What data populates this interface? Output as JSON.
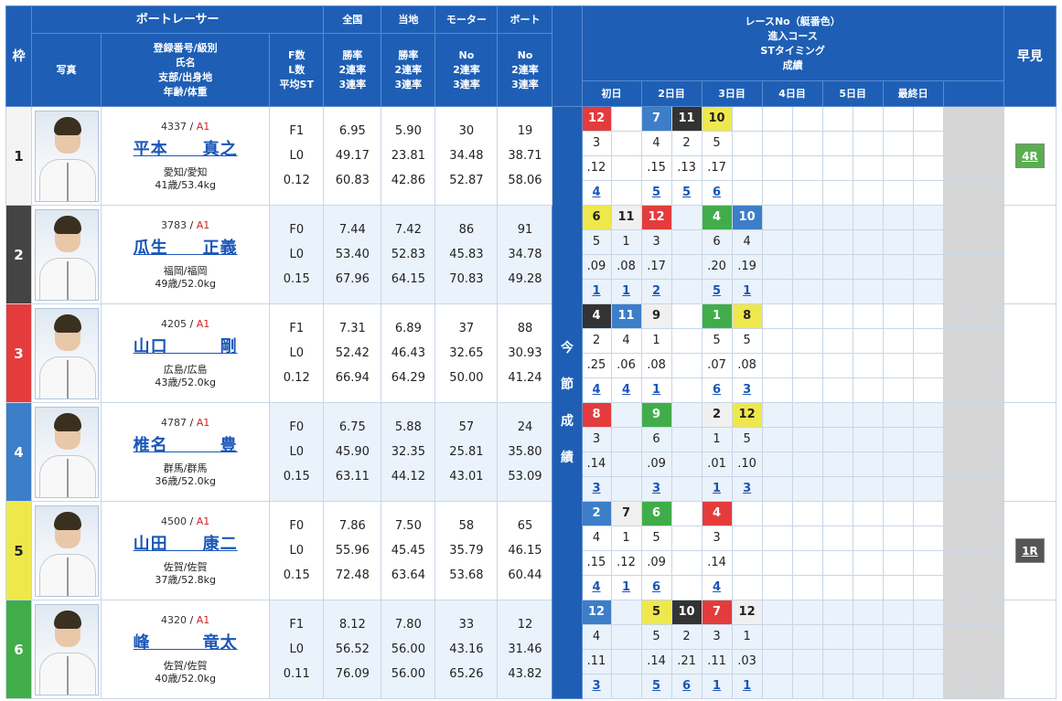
{
  "header": {
    "boat_racer": "ボートレーサー",
    "waku": "枠",
    "photo": "写真",
    "info_sub": [
      "登録番号/級別",
      "氏名",
      "支部/出身地",
      "年齢/体重"
    ],
    "f_sub": [
      "F数",
      "L数",
      "平均ST"
    ],
    "zenkoku": "全国",
    "zenkoku_sub": [
      "勝率",
      "2連率",
      "3連率"
    ],
    "touchi": "当地",
    "touchi_sub": [
      "勝率",
      "2連率",
      "3連率"
    ],
    "motor": "モーター",
    "motor_sub": [
      "No",
      "2連率",
      "3連率"
    ],
    "boat": "ボート",
    "boat_sub": [
      "No",
      "2連率",
      "3連率"
    ],
    "race_info": [
      "レースNo（艇番色）",
      "進入コース",
      "STタイミング",
      "成績"
    ],
    "days": [
      "初日",
      "2日目",
      "3日目",
      "4日目",
      "5日目",
      "最終日"
    ],
    "hayami": "早見",
    "konsetsu": [
      "今",
      "節",
      "成",
      "績"
    ]
  },
  "racers": [
    {
      "lane": "1",
      "reg": "4337",
      "cls": "A1",
      "name": "平本　　真之",
      "branch": "愛知/愛知",
      "age": "41歳/53.4kg",
      "f": "F1",
      "l": "L0",
      "st": "0.12",
      "zen": [
        "6.95",
        "49.17",
        "60.83"
      ],
      "toc": [
        "5.90",
        "23.81",
        "42.86"
      ],
      "mot": [
        "30",
        "34.48",
        "52.87"
      ],
      "boa": [
        "19",
        "38.71",
        "58.06"
      ],
      "hayami": "4R",
      "hcolor": "g",
      "rows": [
        [
          {
            "t": "12",
            "c": "3"
          },
          {
            "t": "",
            "c": ""
          },
          {
            "t": "7",
            "c": "4"
          },
          {
            "t": "11",
            "c": "2"
          },
          {
            "t": "10",
            "c": "5"
          },
          {
            "t": "",
            "c": ""
          }
        ],
        [
          "3",
          "",
          "4",
          "2",
          "5",
          ""
        ],
        [
          ".12",
          "",
          ".15",
          ".13",
          ".17",
          ""
        ],
        [
          "4",
          "",
          "5",
          "5",
          "6",
          ""
        ]
      ]
    },
    {
      "lane": "2",
      "reg": "3783",
      "cls": "A1",
      "name": "瓜生　　正義",
      "branch": "福岡/福岡",
      "age": "49歳/52.0kg",
      "f": "F0",
      "l": "L0",
      "st": "0.15",
      "zen": [
        "7.44",
        "53.40",
        "67.96"
      ],
      "toc": [
        "7.42",
        "52.83",
        "64.15"
      ],
      "mot": [
        "86",
        "45.83",
        "70.83"
      ],
      "boa": [
        "91",
        "34.78",
        "49.28"
      ],
      "hayami": "",
      "hcolor": "",
      "rows": [
        [
          {
            "t": "6",
            "c": "5"
          },
          {
            "t": "11",
            "c": "1"
          },
          {
            "t": "12",
            "c": "3"
          },
          {
            "t": "",
            "c": ""
          },
          {
            "t": "4",
            "c": "6"
          },
          {
            "t": "10",
            "c": "4"
          }
        ],
        [
          "5",
          "1",
          "3",
          "",
          "6",
          "4"
        ],
        [
          ".09",
          ".08",
          ".17",
          "",
          ".20",
          ".19"
        ],
        [
          "1",
          "1",
          "2",
          "",
          "5",
          "1"
        ]
      ]
    },
    {
      "lane": "3",
      "reg": "4205",
      "cls": "A1",
      "name": "山口　　　剛",
      "branch": "広島/広島",
      "age": "43歳/52.0kg",
      "f": "F1",
      "l": "L0",
      "st": "0.12",
      "zen": [
        "7.31",
        "52.42",
        "66.94"
      ],
      "toc": [
        "6.89",
        "46.43",
        "64.29"
      ],
      "mot": [
        "37",
        "32.65",
        "50.00"
      ],
      "boa": [
        "88",
        "30.93",
        "41.24"
      ],
      "hayami": "",
      "hcolor": "",
      "rows": [
        [
          {
            "t": "4",
            "c": "2"
          },
          {
            "t": "11",
            "c": "4"
          },
          {
            "t": "9",
            "c": "1"
          },
          {
            "t": "",
            "c": ""
          },
          {
            "t": "1",
            "c": "6"
          },
          {
            "t": "8",
            "c": "5"
          }
        ],
        [
          "2",
          "4",
          "1",
          "",
          "5",
          "5"
        ],
        [
          ".25",
          ".06",
          ".08",
          "",
          ".07",
          ".08"
        ],
        [
          "4",
          "4",
          "1",
          "",
          "6",
          "3"
        ]
      ]
    },
    {
      "lane": "4",
      "reg": "4787",
      "cls": "A1",
      "name": "椎名　　　豊",
      "branch": "群馬/群馬",
      "age": "36歳/52.0kg",
      "f": "F0",
      "l": "L0",
      "st": "0.15",
      "zen": [
        "6.75",
        "45.90",
        "63.11"
      ],
      "toc": [
        "5.88",
        "32.35",
        "44.12"
      ],
      "mot": [
        "57",
        "25.81",
        "43.01"
      ],
      "boa": [
        "24",
        "35.80",
        "53.09"
      ],
      "hayami": "",
      "hcolor": "",
      "rows": [
        [
          {
            "t": "8",
            "c": "3"
          },
          {
            "t": "",
            "c": ""
          },
          {
            "t": "9",
            "c": "6"
          },
          {
            "t": "",
            "c": ""
          },
          {
            "t": "2",
            "c": "1"
          },
          {
            "t": "12",
            "c": "5"
          }
        ],
        [
          "3",
          "",
          "6",
          "",
          "1",
          "5"
        ],
        [
          ".14",
          "",
          ".09",
          "",
          ".01",
          ".10"
        ],
        [
          "3",
          "",
          "3",
          "",
          "1",
          "3"
        ]
      ]
    },
    {
      "lane": "5",
      "reg": "4500",
      "cls": "A1",
      "name": "山田　　康二",
      "branch": "佐賀/佐賀",
      "age": "37歳/52.8kg",
      "f": "F0",
      "l": "L0",
      "st": "0.15",
      "zen": [
        "7.86",
        "55.96",
        "72.48"
      ],
      "toc": [
        "7.50",
        "45.45",
        "63.64"
      ],
      "mot": [
        "58",
        "35.79",
        "53.68"
      ],
      "boa": [
        "65",
        "46.15",
        "60.44"
      ],
      "hayami": "1R",
      "hcolor": "d",
      "rows": [
        [
          {
            "t": "2",
            "c": "4"
          },
          {
            "t": "7",
            "c": "1"
          },
          {
            "t": "6",
            "c": "6"
          },
          {
            "t": "",
            "c": ""
          },
          {
            "t": "4",
            "c": "3"
          },
          {
            "t": "",
            "c": ""
          }
        ],
        [
          "4",
          "1",
          "5",
          "",
          "3",
          ""
        ],
        [
          ".15",
          ".12",
          ".09",
          "",
          ".14",
          ""
        ],
        [
          "4",
          "1",
          "6",
          "",
          "4",
          ""
        ]
      ]
    },
    {
      "lane": "6",
      "reg": "4320",
      "cls": "A1",
      "name": "峰　　　竜太",
      "branch": "佐賀/佐賀",
      "age": "40歳/52.0kg",
      "f": "F1",
      "l": "L0",
      "st": "0.11",
      "zen": [
        "8.12",
        "56.52",
        "76.09"
      ],
      "toc": [
        "7.80",
        "56.00",
        "56.00"
      ],
      "mot": [
        "33",
        "43.16",
        "65.26"
      ],
      "boa": [
        "12",
        "31.46",
        "43.82"
      ],
      "hayami": "",
      "hcolor": "",
      "rows": [
        [
          {
            "t": "12",
            "c": "4"
          },
          {
            "t": "",
            "c": ""
          },
          {
            "t": "5",
            "c": "5"
          },
          {
            "t": "10",
            "c": "2"
          },
          {
            "t": "7",
            "c": "3"
          },
          {
            "t": "12",
            "c": "1"
          }
        ],
        [
          "4",
          "",
          "5",
          "2",
          "3",
          "1"
        ],
        [
          ".11",
          "",
          ".14",
          ".21",
          ".11",
          ".03"
        ],
        [
          "3",
          "",
          "5",
          "6",
          "1",
          "1"
        ]
      ]
    }
  ]
}
